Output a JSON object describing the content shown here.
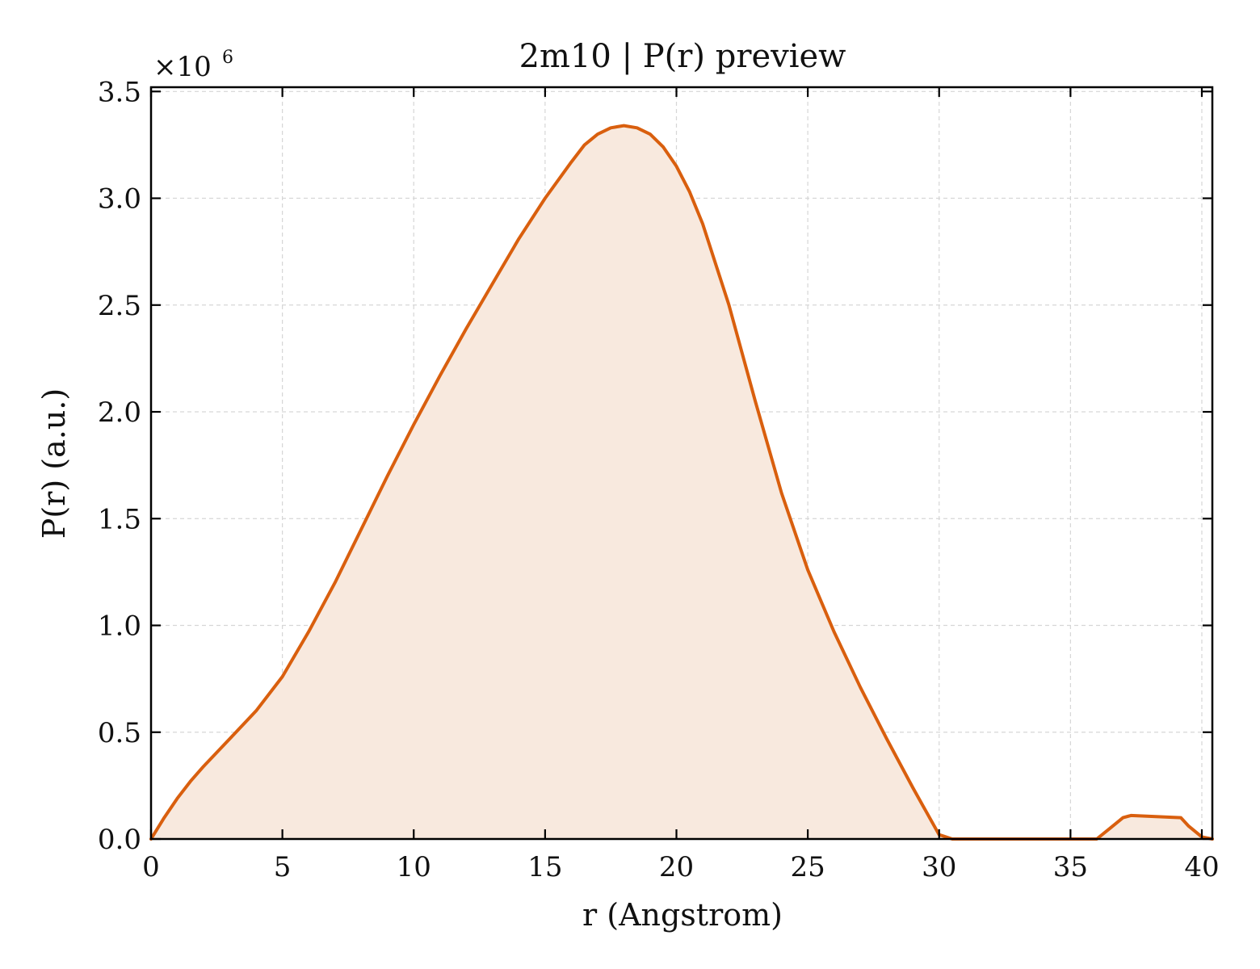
{
  "chart_data": {
    "type": "area",
    "title": "2m10 | P(r) preview",
    "xlabel": "r (Angstrom)",
    "ylabel": "P(r) (a.u.)",
    "y_multiplier": "×10",
    "y_multiplier_exponent": "6",
    "xlim": [
      0,
      40.4
    ],
    "ylim": [
      0,
      3.52
    ],
    "x_ticks": [
      0,
      5,
      10,
      15,
      20,
      25,
      30,
      35,
      40
    ],
    "x_tick_labels": [
      "0",
      "5",
      "10",
      "15",
      "20",
      "25",
      "30",
      "35",
      "40"
    ],
    "y_ticks": [
      0,
      0.5,
      1.0,
      1.5,
      2.0,
      2.5,
      3.0,
      3.5
    ],
    "y_tick_labels": [
      "0.0",
      "0.5",
      "1.0",
      "1.5",
      "2.0",
      "2.5",
      "3.0",
      "3.5"
    ],
    "grid": true,
    "line_color": "#d95f0e",
    "fill_color": "#f8e9de",
    "series": [
      {
        "x": [
          0,
          0.5,
          1,
          1.5,
          2,
          3,
          4,
          5,
          6,
          7,
          8,
          9,
          10,
          11,
          12,
          13,
          14,
          15,
          16,
          16.5,
          17,
          17.5,
          18,
          18.5,
          19,
          19.5,
          20,
          20.5,
          21,
          22,
          23,
          24,
          25,
          26,
          27,
          28,
          29,
          30,
          30.5,
          31,
          31.5,
          32,
          32.5,
          33,
          33.5,
          34,
          34.5,
          35,
          35.5,
          36,
          36.5,
          37,
          37.3,
          39.2,
          39.5,
          40,
          40.4
        ],
        "values": [
          0,
          0.1,
          0.19,
          0.27,
          0.34,
          0.47,
          0.6,
          0.76,
          0.97,
          1.2,
          1.45,
          1.7,
          1.94,
          2.17,
          2.39,
          2.6,
          2.81,
          3.0,
          3.17,
          3.25,
          3.3,
          3.33,
          3.34,
          3.33,
          3.3,
          3.24,
          3.15,
          3.03,
          2.88,
          2.5,
          2.05,
          1.62,
          1.26,
          0.97,
          0.71,
          0.47,
          0.24,
          0.02,
          -0.07,
          -0.13,
          -0.17,
          -0.18,
          -0.17,
          -0.14,
          -0.11,
          -0.1,
          -0.08,
          -0.07,
          -0.04,
          0.0,
          0.05,
          0.1,
          0.11,
          0.1,
          0.06,
          0.01,
          0.0
        ]
      }
    ]
  }
}
